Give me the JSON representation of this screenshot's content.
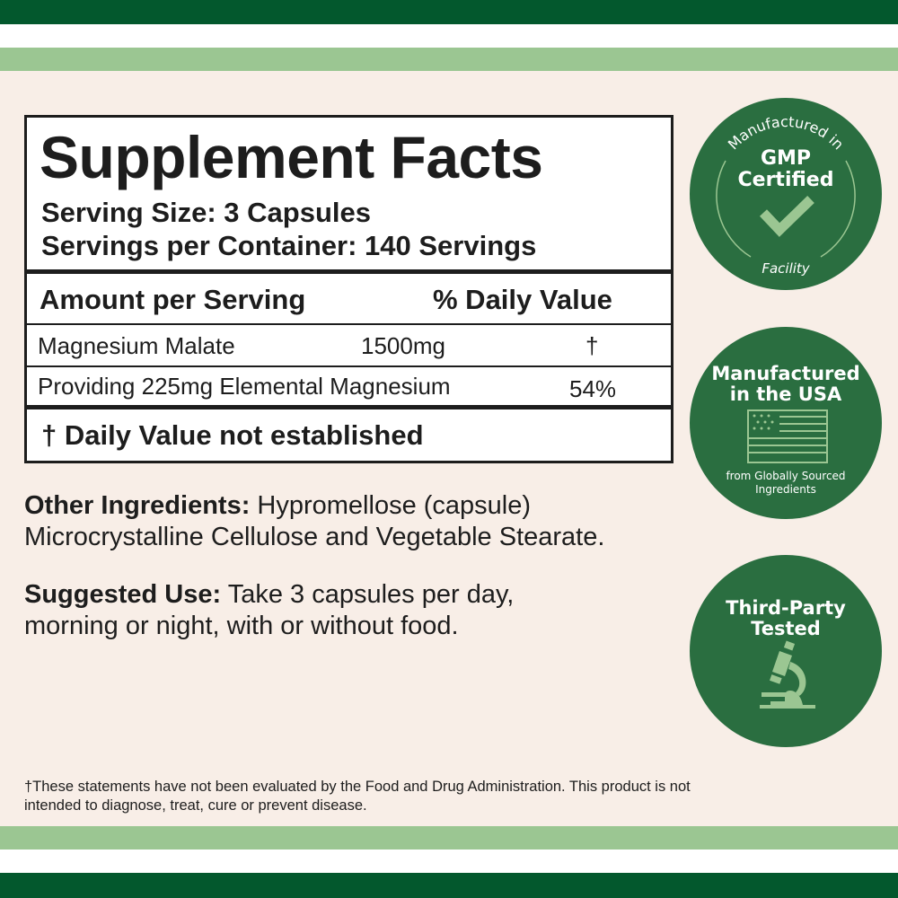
{
  "colors": {
    "dark_green": "#03582d",
    "light_green": "#9bc692",
    "badge_green": "#2a6e40",
    "cream": "#f8eee7"
  },
  "facts": {
    "title": "Supplement Facts",
    "serving_size": "Serving Size: 3 Capsules",
    "servings_per_container": "Servings per Container: 140 Servings",
    "header_amount": "Amount per Serving",
    "header_dv": "% Daily Value",
    "rows": [
      {
        "name": "Magnesium Malate",
        "amount": "1500mg",
        "dv": "†"
      },
      {
        "name": "Providing 225mg Elemental Magnesium",
        "amount": "",
        "dv": "54%"
      }
    ],
    "footnote": "† Daily Value not established"
  },
  "other_ingredients": {
    "label": "Other Ingredients:",
    "text": " Hypromellose (capsule)",
    "line2": "Microcrystalline Cellulose and Vegetable Stearate."
  },
  "suggested_use": {
    "label": "Suggested Use:",
    "text": " Take 3 capsules per day,",
    "line2": "morning or night, with or without food."
  },
  "disclaimer": {
    "line1": "†These statements have not been evaluated by the Food and Drug Administration. This product is not",
    "line2": "intended to diagnose, treat, cure or prevent disease."
  },
  "badges": [
    {
      "arc_top": "Manufactured in",
      "title1": "GMP",
      "title2": "Certified",
      "arc_bottom": "Facility",
      "icon": "checkmark-icon"
    },
    {
      "title1": "Manufactured",
      "title2": "in the USA",
      "sub1": "from Globally Sourced",
      "sub2": "Ingredients",
      "icon": "us-flag-icon"
    },
    {
      "title1": "Third-Party",
      "title2": "Tested",
      "icon": "microscope-icon"
    }
  ]
}
